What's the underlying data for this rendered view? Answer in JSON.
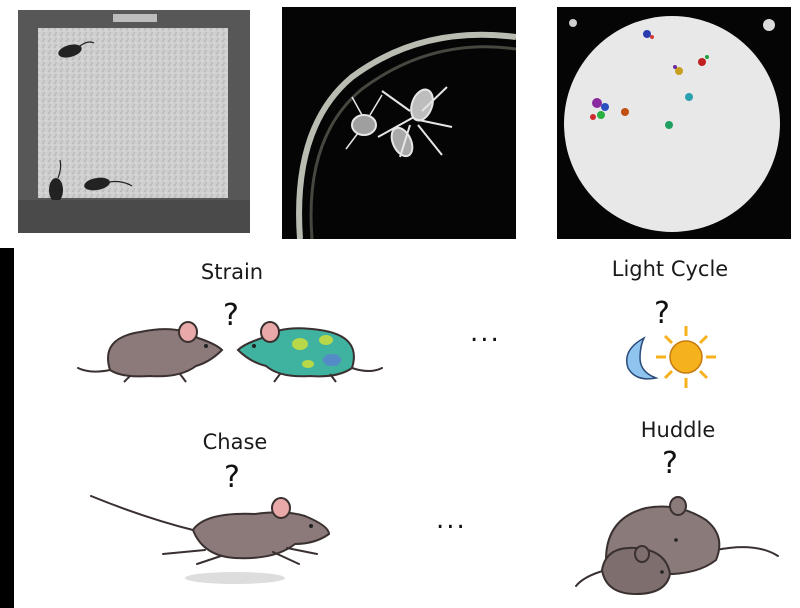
{
  "labels": {
    "strain": "Strain",
    "light_cycle": "Light Cycle",
    "chase": "Chase",
    "huddle": "Huddle"
  },
  "symbols": {
    "question": "?",
    "ellipsis": "..."
  },
  "colors": {
    "mouse_body": "#8c7a7a",
    "mouse_outline": "#3a3030",
    "mouse_ear": "#e9a9a9",
    "spotted_mouse_body": "#3fb3a0",
    "spotted_mouse_spots": "#b8d84a",
    "spotted_mouse_tint": "#5a7fd0",
    "moon": "#8fc4ee",
    "sun": "#f6b21c",
    "dark_panel": "#000000",
    "arena_floor": "#c8c8c8",
    "petri_bg": "#e9e9e9"
  }
}
